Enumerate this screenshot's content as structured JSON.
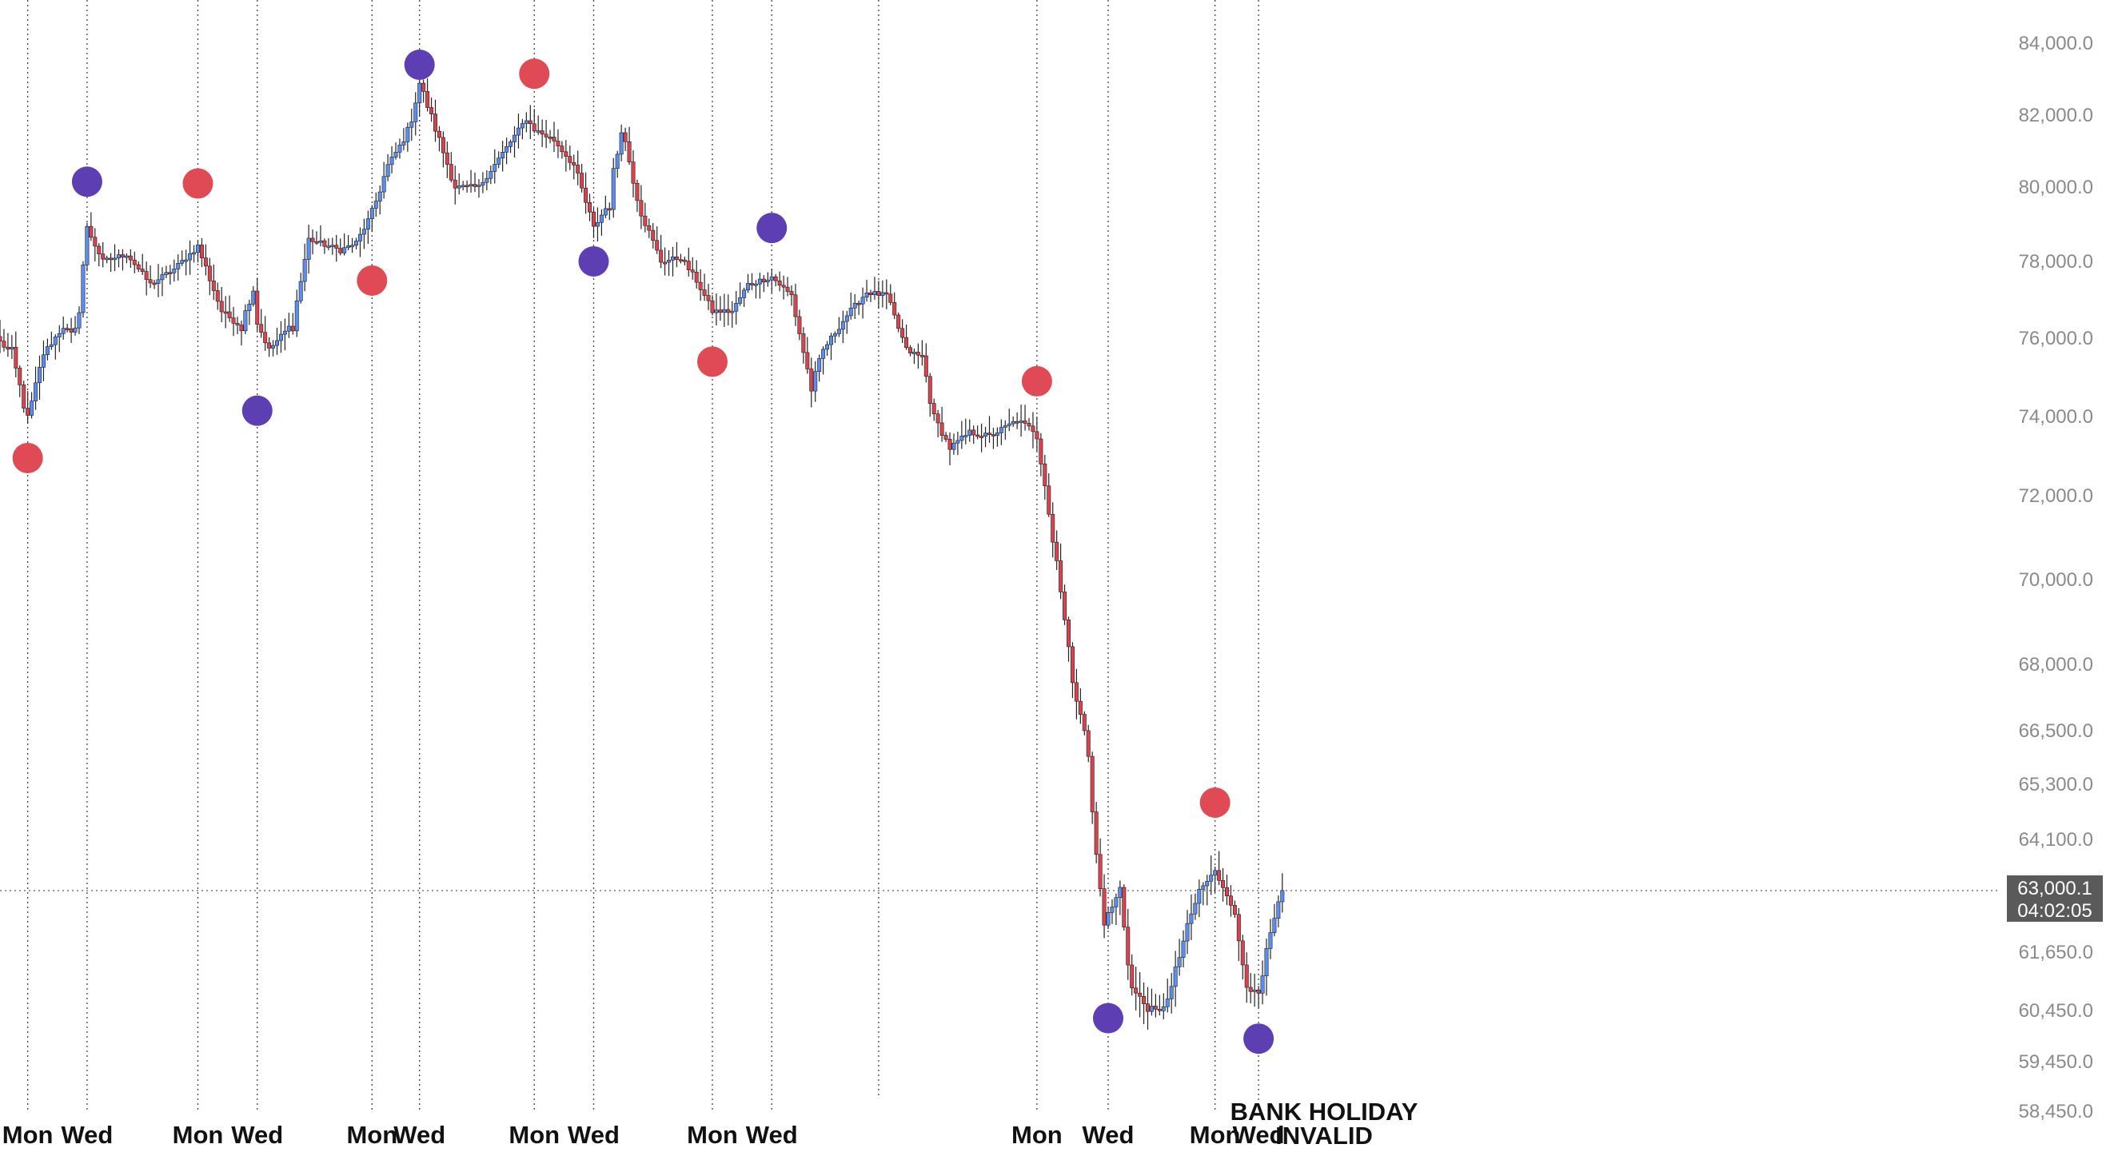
{
  "chart_data": {
    "type": "candlestick",
    "y_axis": {
      "ticks": [
        "84,000.0",
        "82,000.0",
        "80,000.0",
        "78,000.0",
        "76,000.0",
        "74,000.0",
        "72,000.0",
        "70,000.0",
        "68,000.0",
        "66,500.0",
        "65,300.0",
        "64,100.0",
        "61,650.0",
        "60,450.0",
        "59,450.0",
        "58,450.0"
      ],
      "scale": "non-linear",
      "position": "right"
    },
    "x_axis": {
      "ticks": [
        {
          "label": "Mon",
          "candle": 7
        },
        {
          "label": "Wed",
          "candle": 22
        },
        {
          "label": "Mon",
          "candle": 50
        },
        {
          "label": "Wed",
          "candle": 65
        },
        {
          "label": "Mon",
          "candle": 94
        },
        {
          "label": "Wed",
          "candle": 106
        },
        {
          "label": "Mon",
          "candle": 135
        },
        {
          "label": "Wed",
          "candle": 150
        },
        {
          "label": "Mon",
          "candle": 180
        },
        {
          "label": "Wed",
          "candle": 195
        },
        {
          "label": "Mon",
          "candle": 262
        },
        {
          "label": "Wed",
          "candle": 280
        },
        {
          "label": "Mon",
          "candle": 307
        },
        {
          "label": "Wed",
          "candle": 318
        }
      ]
    },
    "annotation": {
      "lines": [
        "BANK HOLIDAY",
        "INVALID"
      ],
      "candle": 222
    },
    "current_price": {
      "value": "63,000.1",
      "countdown": "04:02:05",
      "numeric": 63000.1
    },
    "colors": {
      "up": "#5b8dee",
      "down": "#d9434e",
      "marker_high": "#e04a55",
      "marker_low": "#5e3fb3",
      "gridline": "#555555",
      "axis_text": "#8a8a8a"
    },
    "markers": [
      {
        "candle": 7,
        "type": "low",
        "color": "red",
        "price": 72950
      },
      {
        "candle": 22,
        "type": "high",
        "color": "purple",
        "price": 80150
      },
      {
        "candle": 50,
        "type": "high",
        "color": "red",
        "price": 80100
      },
      {
        "candle": 65,
        "type": "low",
        "color": "purple",
        "price": 74150
      },
      {
        "candle": 94,
        "type": "low",
        "color": "red",
        "price": 77500
      },
      {
        "candle": 106,
        "type": "high",
        "color": "purple",
        "price": 83400
      },
      {
        "candle": 135,
        "type": "high",
        "color": "red",
        "price": 83150
      },
      {
        "candle": 150,
        "type": "low",
        "color": "purple",
        "price": 78000
      },
      {
        "candle": 180,
        "type": "low",
        "color": "red",
        "price": 75400
      },
      {
        "candle": 195,
        "type": "high",
        "color": "purple",
        "price": 78900
      },
      {
        "candle": 262,
        "type": "high",
        "color": "red",
        "price": 74900
      },
      {
        "candle": 280,
        "type": "low",
        "color": "purple",
        "price": 60300
      },
      {
        "candle": 307,
        "type": "high",
        "color": "red",
        "price": 64900
      },
      {
        "candle": 318,
        "type": "low",
        "color": "purple",
        "price": 59900
      }
    ],
    "anchors": [
      {
        "c": 0,
        "p": 75900
      },
      {
        "c": 3,
        "p": 75600
      },
      {
        "c": 7,
        "p": 73900
      },
      {
        "c": 11,
        "p": 75600
      },
      {
        "c": 16,
        "p": 76300
      },
      {
        "c": 19,
        "p": 76000
      },
      {
        "c": 22,
        "p": 78900
      },
      {
        "c": 26,
        "p": 78000
      },
      {
        "c": 32,
        "p": 78200
      },
      {
        "c": 38,
        "p": 77400
      },
      {
        "c": 44,
        "p": 77800
      },
      {
        "c": 48,
        "p": 78200
      },
      {
        "c": 50,
        "p": 78400
      },
      {
        "c": 56,
        "p": 76700
      },
      {
        "c": 61,
        "p": 76300
      },
      {
        "c": 64,
        "p": 77400
      },
      {
        "c": 65,
        "p": 76400
      },
      {
        "c": 68,
        "p": 75700
      },
      {
        "c": 74,
        "p": 76400
      },
      {
        "c": 78,
        "p": 78600
      },
      {
        "c": 86,
        "p": 78300
      },
      {
        "c": 90,
        "p": 78500
      },
      {
        "c": 94,
        "p": 79300
      },
      {
        "c": 98,
        "p": 80600
      },
      {
        "c": 103,
        "p": 81500
      },
      {
        "c": 106,
        "p": 82900
      },
      {
        "c": 111,
        "p": 81300
      },
      {
        "c": 115,
        "p": 80000
      },
      {
        "c": 121,
        "p": 80000
      },
      {
        "c": 128,
        "p": 81100
      },
      {
        "c": 133,
        "p": 81900
      },
      {
        "c": 135,
        "p": 81600
      },
      {
        "c": 140,
        "p": 81300
      },
      {
        "c": 145,
        "p": 80600
      },
      {
        "c": 150,
        "p": 78900
      },
      {
        "c": 154,
        "p": 79600
      },
      {
        "c": 157,
        "p": 81700
      },
      {
        "c": 162,
        "p": 79300
      },
      {
        "c": 167,
        "p": 78000
      },
      {
        "c": 172,
        "p": 78100
      },
      {
        "c": 176,
        "p": 77500
      },
      {
        "c": 180,
        "p": 76700
      },
      {
        "c": 185,
        "p": 76700
      },
      {
        "c": 189,
        "p": 77400
      },
      {
        "c": 195,
        "p": 77600
      },
      {
        "c": 200,
        "p": 77100
      },
      {
        "c": 205,
        "p": 74700
      },
      {
        "c": 208,
        "p": 75700
      },
      {
        "c": 214,
        "p": 76600
      },
      {
        "c": 219,
        "p": 77200
      },
      {
        "c": 224,
        "p": 77100
      },
      {
        "c": 229,
        "p": 75700
      },
      {
        "c": 233,
        "p": 75500
      },
      {
        "c": 236,
        "p": 74000
      },
      {
        "c": 240,
        "p": 73200
      },
      {
        "c": 245,
        "p": 73600
      },
      {
        "c": 250,
        "p": 73500
      },
      {
        "c": 257,
        "p": 73900
      },
      {
        "c": 262,
        "p": 73600
      },
      {
        "c": 264,
        "p": 72400
      },
      {
        "c": 266,
        "p": 70900
      },
      {
        "c": 268,
        "p": 70000
      },
      {
        "c": 271,
        "p": 67500
      },
      {
        "c": 274,
        "p": 66700
      },
      {
        "c": 277,
        "p": 63700
      },
      {
        "c": 279,
        "p": 62300
      },
      {
        "c": 283,
        "p": 63000
      },
      {
        "c": 286,
        "p": 60900
      },
      {
        "c": 290,
        "p": 60500
      },
      {
        "c": 293,
        "p": 60400
      },
      {
        "c": 296,
        "p": 60900
      },
      {
        "c": 299,
        "p": 61900
      },
      {
        "c": 303,
        "p": 63000
      },
      {
        "c": 307,
        "p": 63400
      },
      {
        "c": 311,
        "p": 62800
      },
      {
        "c": 315,
        "p": 61000
      },
      {
        "c": 318,
        "p": 60700
      },
      {
        "c": 321,
        "p": 62000
      },
      {
        "c": 324,
        "p": 63000
      }
    ]
  }
}
